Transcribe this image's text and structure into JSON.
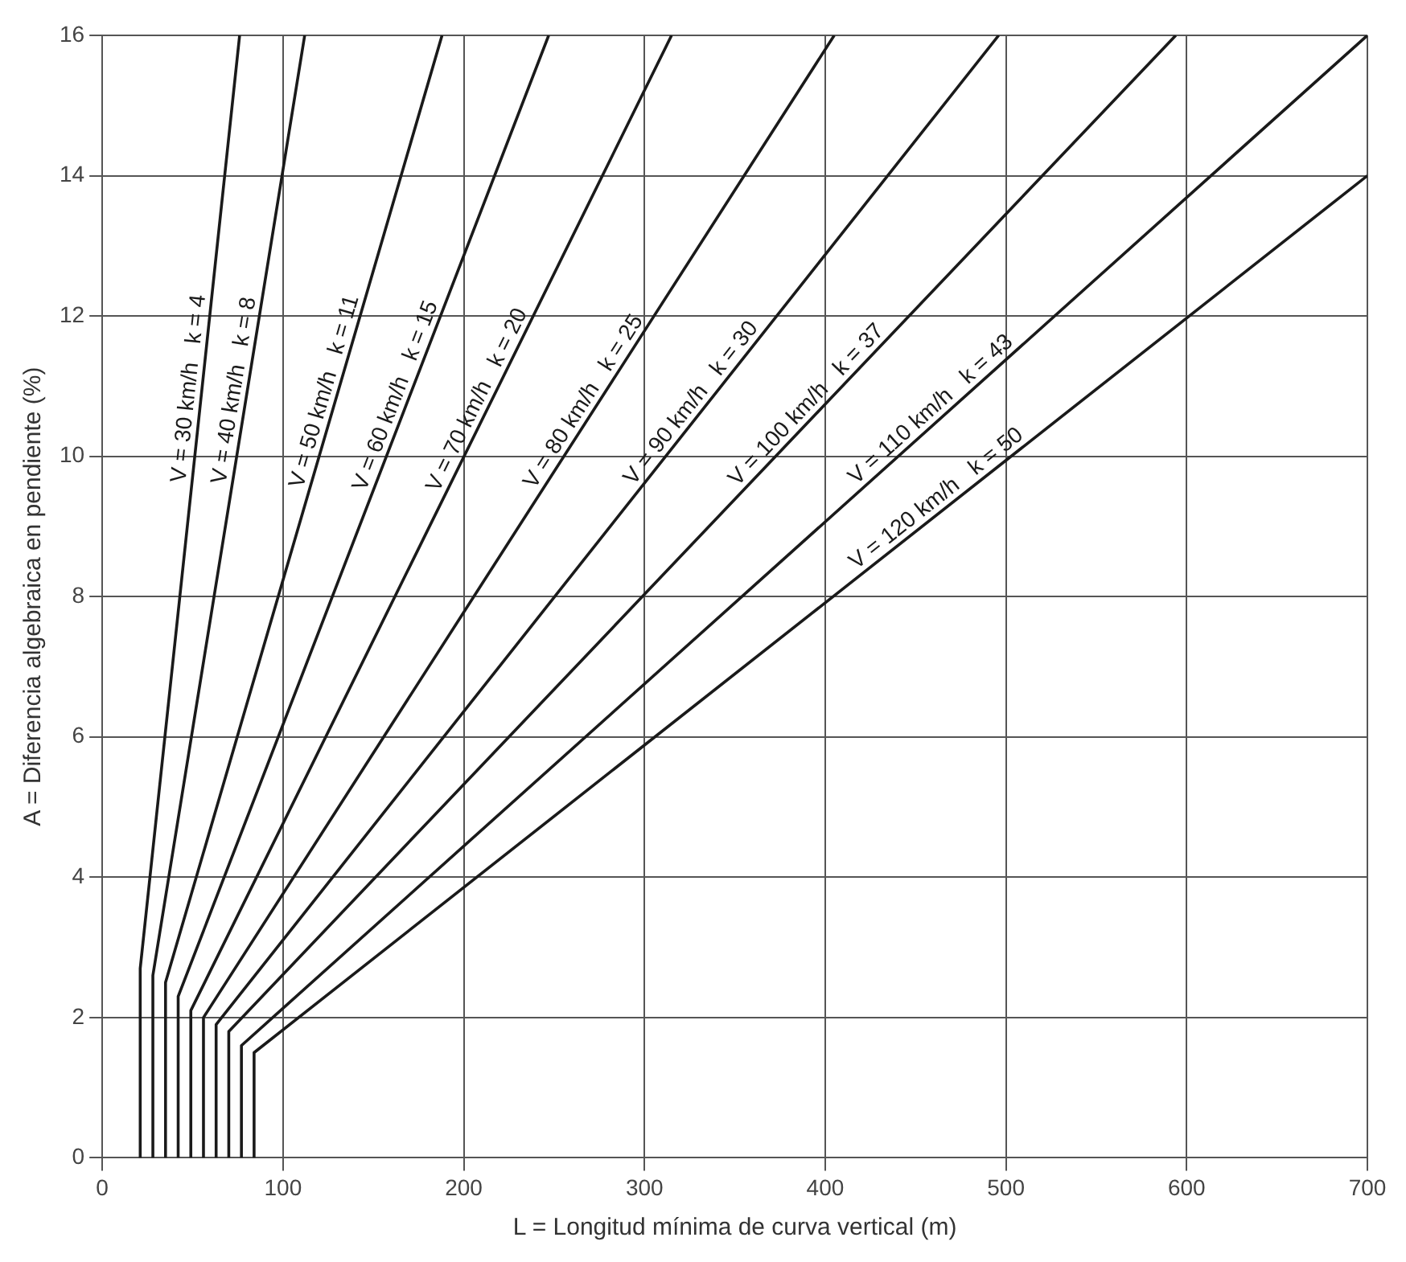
{
  "chart_data": {
    "type": "line",
    "xlabel": "L = Longitud mínima de curva vertical (m)",
    "ylabel": "A = Diferencia algebraica en pendiente (%)",
    "xlim": [
      0,
      700
    ],
    "xticks": [
      0,
      100,
      200,
      300,
      400,
      500,
      600,
      700
    ],
    "ylim": [
      0,
      16
    ],
    "yticks": [
      0,
      2,
      4,
      6,
      8,
      10,
      12,
      14,
      16
    ],
    "grid": true,
    "legend": false,
    "marker": "none",
    "line_style": "solid",
    "series": [
      {
        "name": "V = 30 km/h   k = 4",
        "color": "#1a1a1a",
        "x": [
          21,
          21,
          76
        ],
        "values": [
          0,
          2.7,
          16
        ]
      },
      {
        "name": "V = 40 km/h   k = 8",
        "color": "#1a1a1a",
        "x": [
          28,
          28,
          112
        ],
        "values": [
          0,
          2.6,
          16
        ]
      },
      {
        "name": "V = 50 km/h   k = 11",
        "color": "#1a1a1a",
        "x": [
          35,
          35,
          188
        ],
        "values": [
          0,
          2.5,
          16
        ]
      },
      {
        "name": "V = 60 km/h   k = 15",
        "color": "#1a1a1a",
        "x": [
          42,
          42,
          247
        ],
        "values": [
          0,
          2.3,
          16
        ]
      },
      {
        "name": "V = 70 km/h   k = 20",
        "color": "#1a1a1a",
        "x": [
          49,
          49,
          315
        ],
        "values": [
          0,
          2.1,
          16
        ]
      },
      {
        "name": "V = 80 km/h   k = 25",
        "color": "#1a1a1a",
        "x": [
          56,
          56,
          405
        ],
        "values": [
          0,
          2.0,
          16
        ]
      },
      {
        "name": "V = 90 km/h   k = 30",
        "color": "#1a1a1a",
        "x": [
          63,
          63,
          496
        ],
        "values": [
          0,
          1.9,
          16
        ]
      },
      {
        "name": "V = 100 km/h   k = 37",
        "color": "#1a1a1a",
        "x": [
          70,
          70,
          594
        ],
        "values": [
          0,
          1.8,
          16
        ]
      },
      {
        "name": "V = 110 km/h   k = 43",
        "color": "#1a1a1a",
        "x": [
          77,
          77,
          700
        ],
        "values": [
          0,
          1.6,
          16
        ]
      },
      {
        "name": "V = 120 km/h   k = 50",
        "color": "#1a1a1a",
        "x": [
          84,
          84,
          700
        ],
        "values": [
          0,
          1.5,
          14
        ]
      }
    ]
  }
}
